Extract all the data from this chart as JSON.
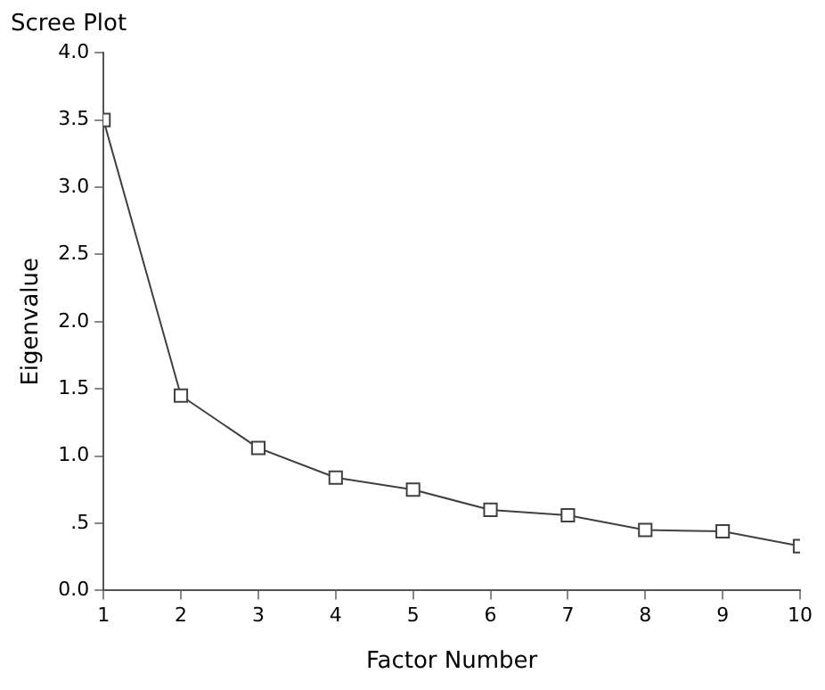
{
  "chart_data": {
    "type": "line",
    "title": "Scree Plot",
    "xlabel": "Factor Number",
    "ylabel": "Eigenvalue",
    "x": [
      1,
      2,
      3,
      4,
      5,
      6,
      7,
      8,
      9,
      10
    ],
    "series": [
      {
        "color": "#404040",
        "values": [
          3.5,
          1.45,
          1.06,
          0.84,
          0.75,
          0.6,
          0.56,
          0.45,
          0.44,
          0.33
        ]
      }
    ],
    "xlim": [
      1,
      10
    ],
    "xticks": [
      1,
      2,
      3,
      4,
      5,
      6,
      7,
      8,
      9,
      10
    ],
    "ylim": [
      0,
      4
    ],
    "yticks": [
      {
        "value": 0,
        "label": "0.0"
      },
      {
        "value": 0.5,
        "label": ".5"
      },
      {
        "value": 1,
        "label": "1.0"
      },
      {
        "value": 1.5,
        "label": "1.5"
      },
      {
        "value": 2,
        "label": "2.0"
      },
      {
        "value": 2.5,
        "label": "2.5"
      },
      {
        "value": 3,
        "label": "3.0"
      },
      {
        "value": 3.5,
        "label": "3.5"
      },
      {
        "value": 4,
        "label": "4.0"
      }
    ],
    "grid": false,
    "legend": false,
    "marker": "square",
    "line_style": "solid"
  }
}
